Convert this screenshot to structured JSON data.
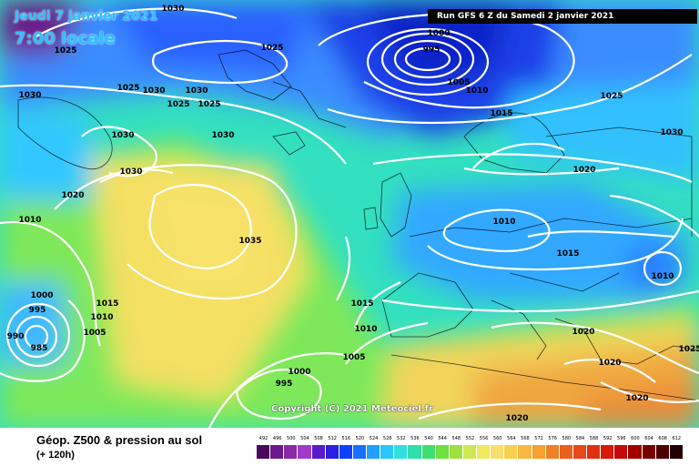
{
  "header": {
    "date": "Jeudi 7 janvier 2021",
    "time": "7:00 locale",
    "run": "Run GFS 6 Z du Samedi 2 janvier 2021"
  },
  "copyright": "Copyright (C) 2021 Meteociel.fr",
  "footer": {
    "title": "Géop. Z500 & pression au sol",
    "lead": "(+ 120h)"
  },
  "map": {
    "isobar_labels": [
      "1030",
      "1025",
      "1025",
      "1030",
      "1025",
      "1030",
      "1030",
      "1025",
      "1025",
      "1030",
      "1030",
      "1030",
      "1020",
      "1010",
      "1035",
      "1000",
      "995",
      "990",
      "985",
      "1015",
      "1010",
      "1005",
      "1000",
      "995",
      "1000",
      "995",
      "1005",
      "1010",
      "1025",
      "1015",
      "1030",
      "1020",
      "1010",
      "1015",
      "1010",
      "1015",
      "1010",
      "1005",
      "1020",
      "1020",
      "1020",
      "1020",
      "1025"
    ]
  },
  "scale": {
    "labels": [
      "492",
      "496",
      "500",
      "504",
      "508",
      "512",
      "516",
      "520",
      "524",
      "528",
      "532",
      "536",
      "540",
      "544",
      "548",
      "552",
      "556",
      "560",
      "564",
      "568",
      "572",
      "576",
      "580",
      "584",
      "588",
      "592",
      "596",
      "600",
      "604",
      "608",
      "612"
    ],
    "colors": [
      "#4a0a5a",
      "#6a1a8a",
      "#8a2aa8",
      "#a03ac8",
      "#5a1ad0",
      "#2a20e0",
      "#1040ff",
      "#1870ff",
      "#20a0ff",
      "#28c8ff",
      "#30e0e0",
      "#30e0a8",
      "#40e070",
      "#70e040",
      "#a0e040",
      "#d0e850",
      "#f0e860",
      "#f8e070",
      "#f8d050",
      "#f8b840",
      "#f8a030",
      "#f08028",
      "#e86020",
      "#e84818",
      "#e03010",
      "#d81808",
      "#c80808",
      "#a00000",
      "#780000",
      "#500000",
      "#200000"
    ]
  }
}
